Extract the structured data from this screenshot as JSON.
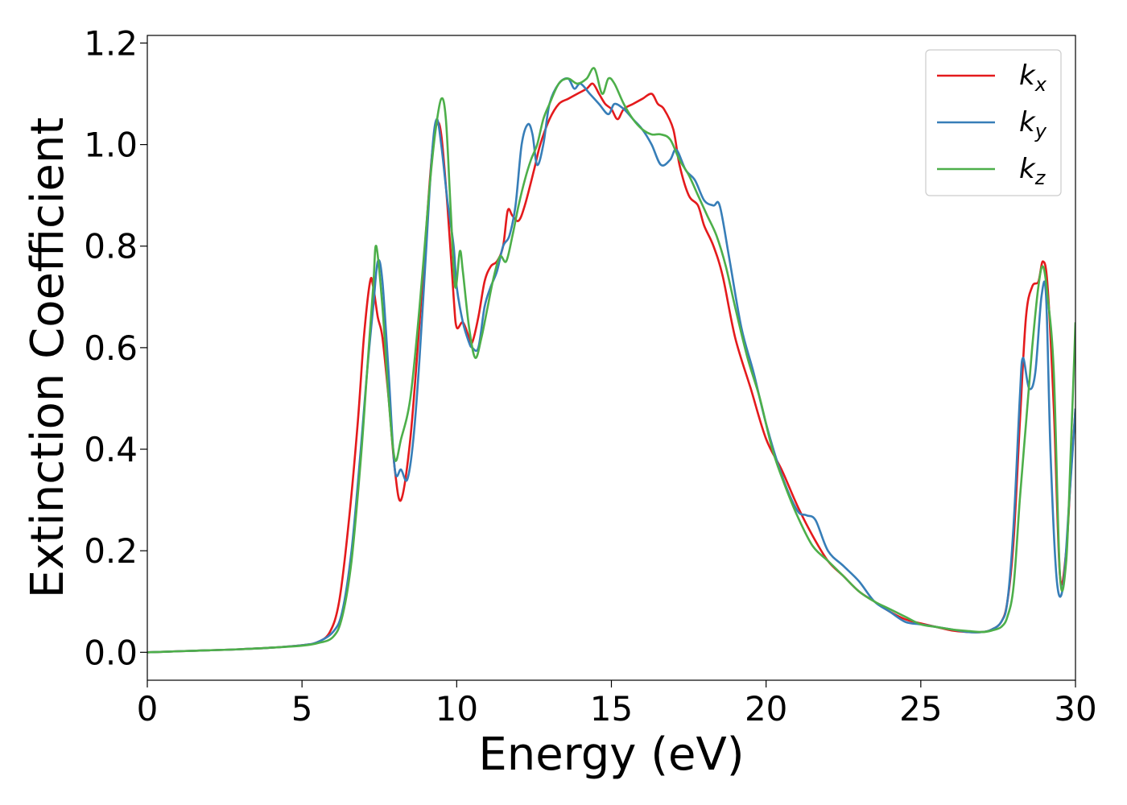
{
  "chart_data": {
    "type": "line",
    "xlabel": "Energy (eV)",
    "ylabel": "Extinction Coefficient",
    "xlim": [
      0,
      30
    ],
    "ylim": [
      -0.055,
      1.215
    ],
    "xticks": [
      0,
      5,
      10,
      15,
      20,
      25,
      30
    ],
    "yticks": [
      0.0,
      0.2,
      0.4,
      0.6,
      0.8,
      1.0,
      1.2
    ],
    "xtick_labels": [
      "0",
      "5",
      "10",
      "15",
      "20",
      "25",
      "30"
    ],
    "ytick_labels": [
      "0.0",
      "0.2",
      "0.4",
      "0.6",
      "0.8",
      "1.0",
      "1.2"
    ],
    "grid": false,
    "legend_position": "top-right",
    "series": [
      {
        "name": "kx",
        "label_base": "k",
        "label_sub": "x",
        "color": "#e41a1c",
        "x": [
          0,
          1,
          2,
          3,
          4,
          5,
          5.5,
          5.9,
          6.2,
          6.5,
          6.8,
          7.0,
          7.2,
          7.3,
          7.45,
          7.6,
          7.8,
          8.0,
          8.2,
          8.5,
          8.8,
          9.0,
          9.2,
          9.35,
          9.5,
          9.7,
          9.9,
          10.0,
          10.2,
          10.4,
          10.5,
          10.7,
          10.9,
          11.1,
          11.3,
          11.5,
          11.65,
          11.8,
          12.0,
          12.2,
          12.5,
          12.7,
          13.0,
          13.3,
          13.6,
          13.9,
          14.2,
          14.4,
          14.6,
          14.8,
          15.0,
          15.2,
          15.4,
          15.7,
          16.0,
          16.3,
          16.5,
          16.7,
          17.0,
          17.2,
          17.5,
          17.8,
          18.0,
          18.3,
          18.6,
          19.0,
          19.5,
          20.0,
          20.5,
          21.0,
          21.5,
          22.0,
          22.5,
          23.0,
          23.5,
          24.0,
          24.5,
          25.0,
          25.5,
          26.0,
          26.5,
          27.0,
          27.3,
          27.6,
          27.8,
          28.0,
          28.2,
          28.4,
          28.6,
          28.8,
          28.95,
          29.1,
          29.3,
          29.5,
          29.7,
          29.85,
          30.0
        ],
        "y": [
          0.0,
          0.002,
          0.004,
          0.006,
          0.009,
          0.014,
          0.02,
          0.04,
          0.1,
          0.25,
          0.45,
          0.62,
          0.73,
          0.72,
          0.66,
          0.62,
          0.5,
          0.36,
          0.3,
          0.42,
          0.65,
          0.82,
          0.98,
          1.04,
          1.02,
          0.88,
          0.7,
          0.64,
          0.65,
          0.62,
          0.61,
          0.66,
          0.73,
          0.76,
          0.77,
          0.8,
          0.87,
          0.86,
          0.85,
          0.88,
          0.95,
          1.0,
          1.05,
          1.08,
          1.09,
          1.1,
          1.11,
          1.12,
          1.1,
          1.08,
          1.07,
          1.05,
          1.07,
          1.08,
          1.09,
          1.1,
          1.08,
          1.07,
          1.03,
          0.96,
          0.9,
          0.88,
          0.84,
          0.8,
          0.74,
          0.62,
          0.52,
          0.42,
          0.36,
          0.29,
          0.23,
          0.18,
          0.15,
          0.12,
          0.1,
          0.08,
          0.065,
          0.057,
          0.05,
          0.043,
          0.04,
          0.04,
          0.045,
          0.06,
          0.1,
          0.22,
          0.45,
          0.66,
          0.72,
          0.73,
          0.77,
          0.72,
          0.48,
          0.15,
          0.2,
          0.35,
          0.48
        ]
      },
      {
        "name": "ky",
        "label_base": "k",
        "label_sub": "y",
        "color": "#377eb8",
        "x": [
          0,
          1,
          2,
          3,
          4,
          5,
          5.5,
          6.0,
          6.3,
          6.6,
          6.9,
          7.1,
          7.3,
          7.45,
          7.6,
          7.8,
          8.0,
          8.2,
          8.4,
          8.6,
          8.8,
          9.0,
          9.2,
          9.35,
          9.5,
          9.7,
          9.9,
          10.0,
          10.2,
          10.4,
          10.5,
          10.7,
          10.9,
          11.1,
          11.3,
          11.5,
          11.7,
          11.9,
          12.1,
          12.3,
          12.45,
          12.6,
          12.8,
          13.0,
          13.3,
          13.6,
          13.8,
          14.0,
          14.3,
          14.6,
          14.9,
          15.1,
          15.4,
          15.7,
          16.0,
          16.3,
          16.6,
          16.9,
          17.1,
          17.4,
          17.7,
          18.0,
          18.3,
          18.5,
          18.8,
          19.2,
          19.6,
          20.0,
          20.5,
          21.0,
          21.3,
          21.6,
          22.0,
          22.5,
          23.0,
          23.5,
          24.0,
          24.5,
          25.0,
          25.5,
          26.0,
          26.5,
          27.0,
          27.3,
          27.6,
          27.8,
          28.0,
          28.2,
          28.3,
          28.5,
          28.7,
          28.9,
          29.05,
          29.2,
          29.4,
          29.6,
          29.8,
          30.0
        ],
        "y": [
          0.0,
          0.002,
          0.004,
          0.006,
          0.009,
          0.014,
          0.02,
          0.04,
          0.08,
          0.2,
          0.4,
          0.55,
          0.68,
          0.77,
          0.73,
          0.55,
          0.36,
          0.36,
          0.34,
          0.42,
          0.58,
          0.78,
          0.98,
          1.05,
          1.0,
          0.89,
          0.8,
          0.72,
          0.65,
          0.61,
          0.6,
          0.6,
          0.68,
          0.72,
          0.75,
          0.8,
          0.82,
          0.88,
          1.0,
          1.04,
          1.02,
          0.96,
          1.0,
          1.08,
          1.12,
          1.13,
          1.11,
          1.12,
          1.1,
          1.08,
          1.06,
          1.08,
          1.07,
          1.05,
          1.03,
          1.0,
          0.96,
          0.97,
          0.99,
          0.95,
          0.93,
          0.89,
          0.88,
          0.88,
          0.78,
          0.64,
          0.55,
          0.45,
          0.35,
          0.28,
          0.27,
          0.26,
          0.2,
          0.17,
          0.14,
          0.1,
          0.08,
          0.06,
          0.055,
          0.05,
          0.045,
          0.04,
          0.04,
          0.045,
          0.06,
          0.1,
          0.25,
          0.5,
          0.58,
          0.52,
          0.55,
          0.7,
          0.7,
          0.38,
          0.14,
          0.13,
          0.3,
          0.48
        ]
      },
      {
        "name": "kz",
        "label_base": "k",
        "label_sub": "z",
        "color": "#4daf4a",
        "x": [
          0,
          1,
          2,
          3,
          4,
          5,
          5.5,
          6.0,
          6.3,
          6.6,
          6.9,
          7.1,
          7.3,
          7.4,
          7.6,
          7.8,
          8.0,
          8.2,
          8.5,
          8.8,
          9.1,
          9.3,
          9.5,
          9.65,
          9.8,
          9.95,
          10.1,
          10.2,
          10.4,
          10.6,
          10.8,
          11.0,
          11.2,
          11.4,
          11.6,
          11.8,
          12.0,
          12.2,
          12.4,
          12.6,
          12.8,
          13.0,
          13.3,
          13.6,
          13.9,
          14.2,
          14.45,
          14.7,
          14.9,
          15.1,
          15.4,
          15.7,
          16.0,
          16.3,
          16.6,
          16.9,
          17.2,
          17.5,
          17.8,
          18.1,
          18.4,
          18.7,
          19.0,
          19.4,
          19.8,
          20.2,
          20.6,
          21.0,
          21.5,
          22.0,
          22.5,
          23.0,
          23.5,
          24.0,
          24.5,
          25.0,
          25.5,
          26.0,
          26.5,
          27.0,
          27.3,
          27.6,
          27.8,
          28.0,
          28.2,
          28.4,
          28.6,
          28.8,
          28.95,
          29.1,
          29.3,
          29.5,
          29.7,
          29.85,
          30.0
        ],
        "y": [
          0.0,
          0.002,
          0.004,
          0.006,
          0.009,
          0.013,
          0.018,
          0.03,
          0.07,
          0.18,
          0.38,
          0.55,
          0.72,
          0.8,
          0.68,
          0.5,
          0.38,
          0.42,
          0.5,
          0.68,
          0.9,
          1.02,
          1.09,
          1.05,
          0.88,
          0.72,
          0.79,
          0.75,
          0.64,
          0.58,
          0.62,
          0.68,
          0.74,
          0.78,
          0.77,
          0.82,
          0.88,
          0.93,
          0.97,
          1.0,
          1.05,
          1.08,
          1.12,
          1.13,
          1.12,
          1.13,
          1.15,
          1.1,
          1.13,
          1.12,
          1.08,
          1.05,
          1.03,
          1.02,
          1.02,
          1.01,
          0.97,
          0.94,
          0.9,
          0.86,
          0.82,
          0.76,
          0.68,
          0.58,
          0.5,
          0.4,
          0.33,
          0.27,
          0.21,
          0.18,
          0.15,
          0.12,
          0.1,
          0.085,
          0.07,
          0.055,
          0.05,
          0.045,
          0.042,
          0.04,
          0.043,
          0.05,
          0.07,
          0.13,
          0.3,
          0.45,
          0.6,
          0.72,
          0.76,
          0.7,
          0.55,
          0.15,
          0.18,
          0.4,
          0.65
        ]
      }
    ]
  }
}
